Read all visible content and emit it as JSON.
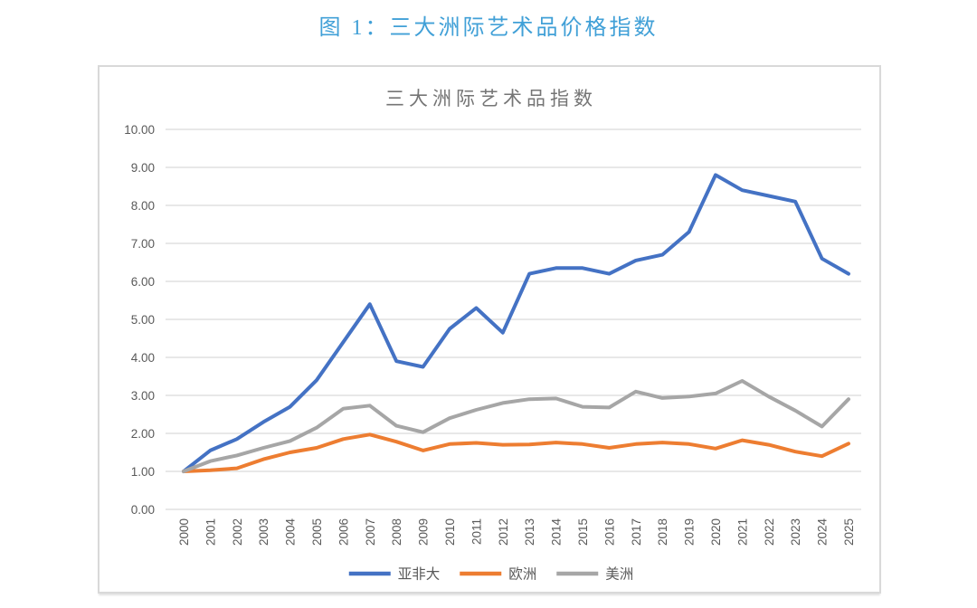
{
  "page": {
    "title": "图 1：三大洲际艺术品价格指数",
    "title_color": "#41A0D7"
  },
  "chart_data": {
    "type": "line",
    "title": "三大洲际艺术品指数",
    "title_color": "#757575",
    "x_labels": [
      "2000",
      "2001",
      "2002",
      "2003",
      "2004",
      "2005",
      "2006",
      "2007",
      "2008",
      "2009",
      "2010",
      "2011",
      "2012",
      "2013",
      "2014",
      "2015",
      "2016",
      "2017",
      "2018",
      "2019",
      "2020",
      "2021",
      "2022",
      "2023",
      "2024",
      "2025"
    ],
    "series": [
      {
        "name": "亚非大",
        "color": "#4472C4",
        "values": [
          1.0,
          1.55,
          1.85,
          2.3,
          2.7,
          3.4,
          4.4,
          5.4,
          3.9,
          3.75,
          4.75,
          5.3,
          4.65,
          6.2,
          6.35,
          6.35,
          6.2,
          6.55,
          6.7,
          7.3,
          8.8,
          8.4,
          8.25,
          8.1,
          6.6,
          6.2
        ]
      },
      {
        "name": "欧洲",
        "color": "#ED7D31",
        "values": [
          1.0,
          1.03,
          1.08,
          1.32,
          1.5,
          1.62,
          1.85,
          1.97,
          1.78,
          1.55,
          1.72,
          1.75,
          1.7,
          1.71,
          1.76,
          1.72,
          1.62,
          1.72,
          1.76,
          1.72,
          1.6,
          1.82,
          1.7,
          1.52,
          1.4,
          1.73
        ]
      },
      {
        "name": "美洲",
        "color": "#A6A6A6",
        "values": [
          1.0,
          1.27,
          1.42,
          1.62,
          1.8,
          2.15,
          2.65,
          2.73,
          2.2,
          2.03,
          2.4,
          2.62,
          2.8,
          2.9,
          2.92,
          2.7,
          2.68,
          3.1,
          2.93,
          2.97,
          3.05,
          3.38,
          2.97,
          2.6,
          2.18,
          2.9
        ]
      }
    ],
    "ylim": [
      0,
      10
    ],
    "ytick_step": 1,
    "ytick_decimals": 2,
    "xlabel": "",
    "ylabel": "",
    "grid": true,
    "legend_position": "bottom",
    "axis_text_color": "#595959",
    "grid_color": "#D9D9D9",
    "plot_background": "#FFFFFF"
  }
}
